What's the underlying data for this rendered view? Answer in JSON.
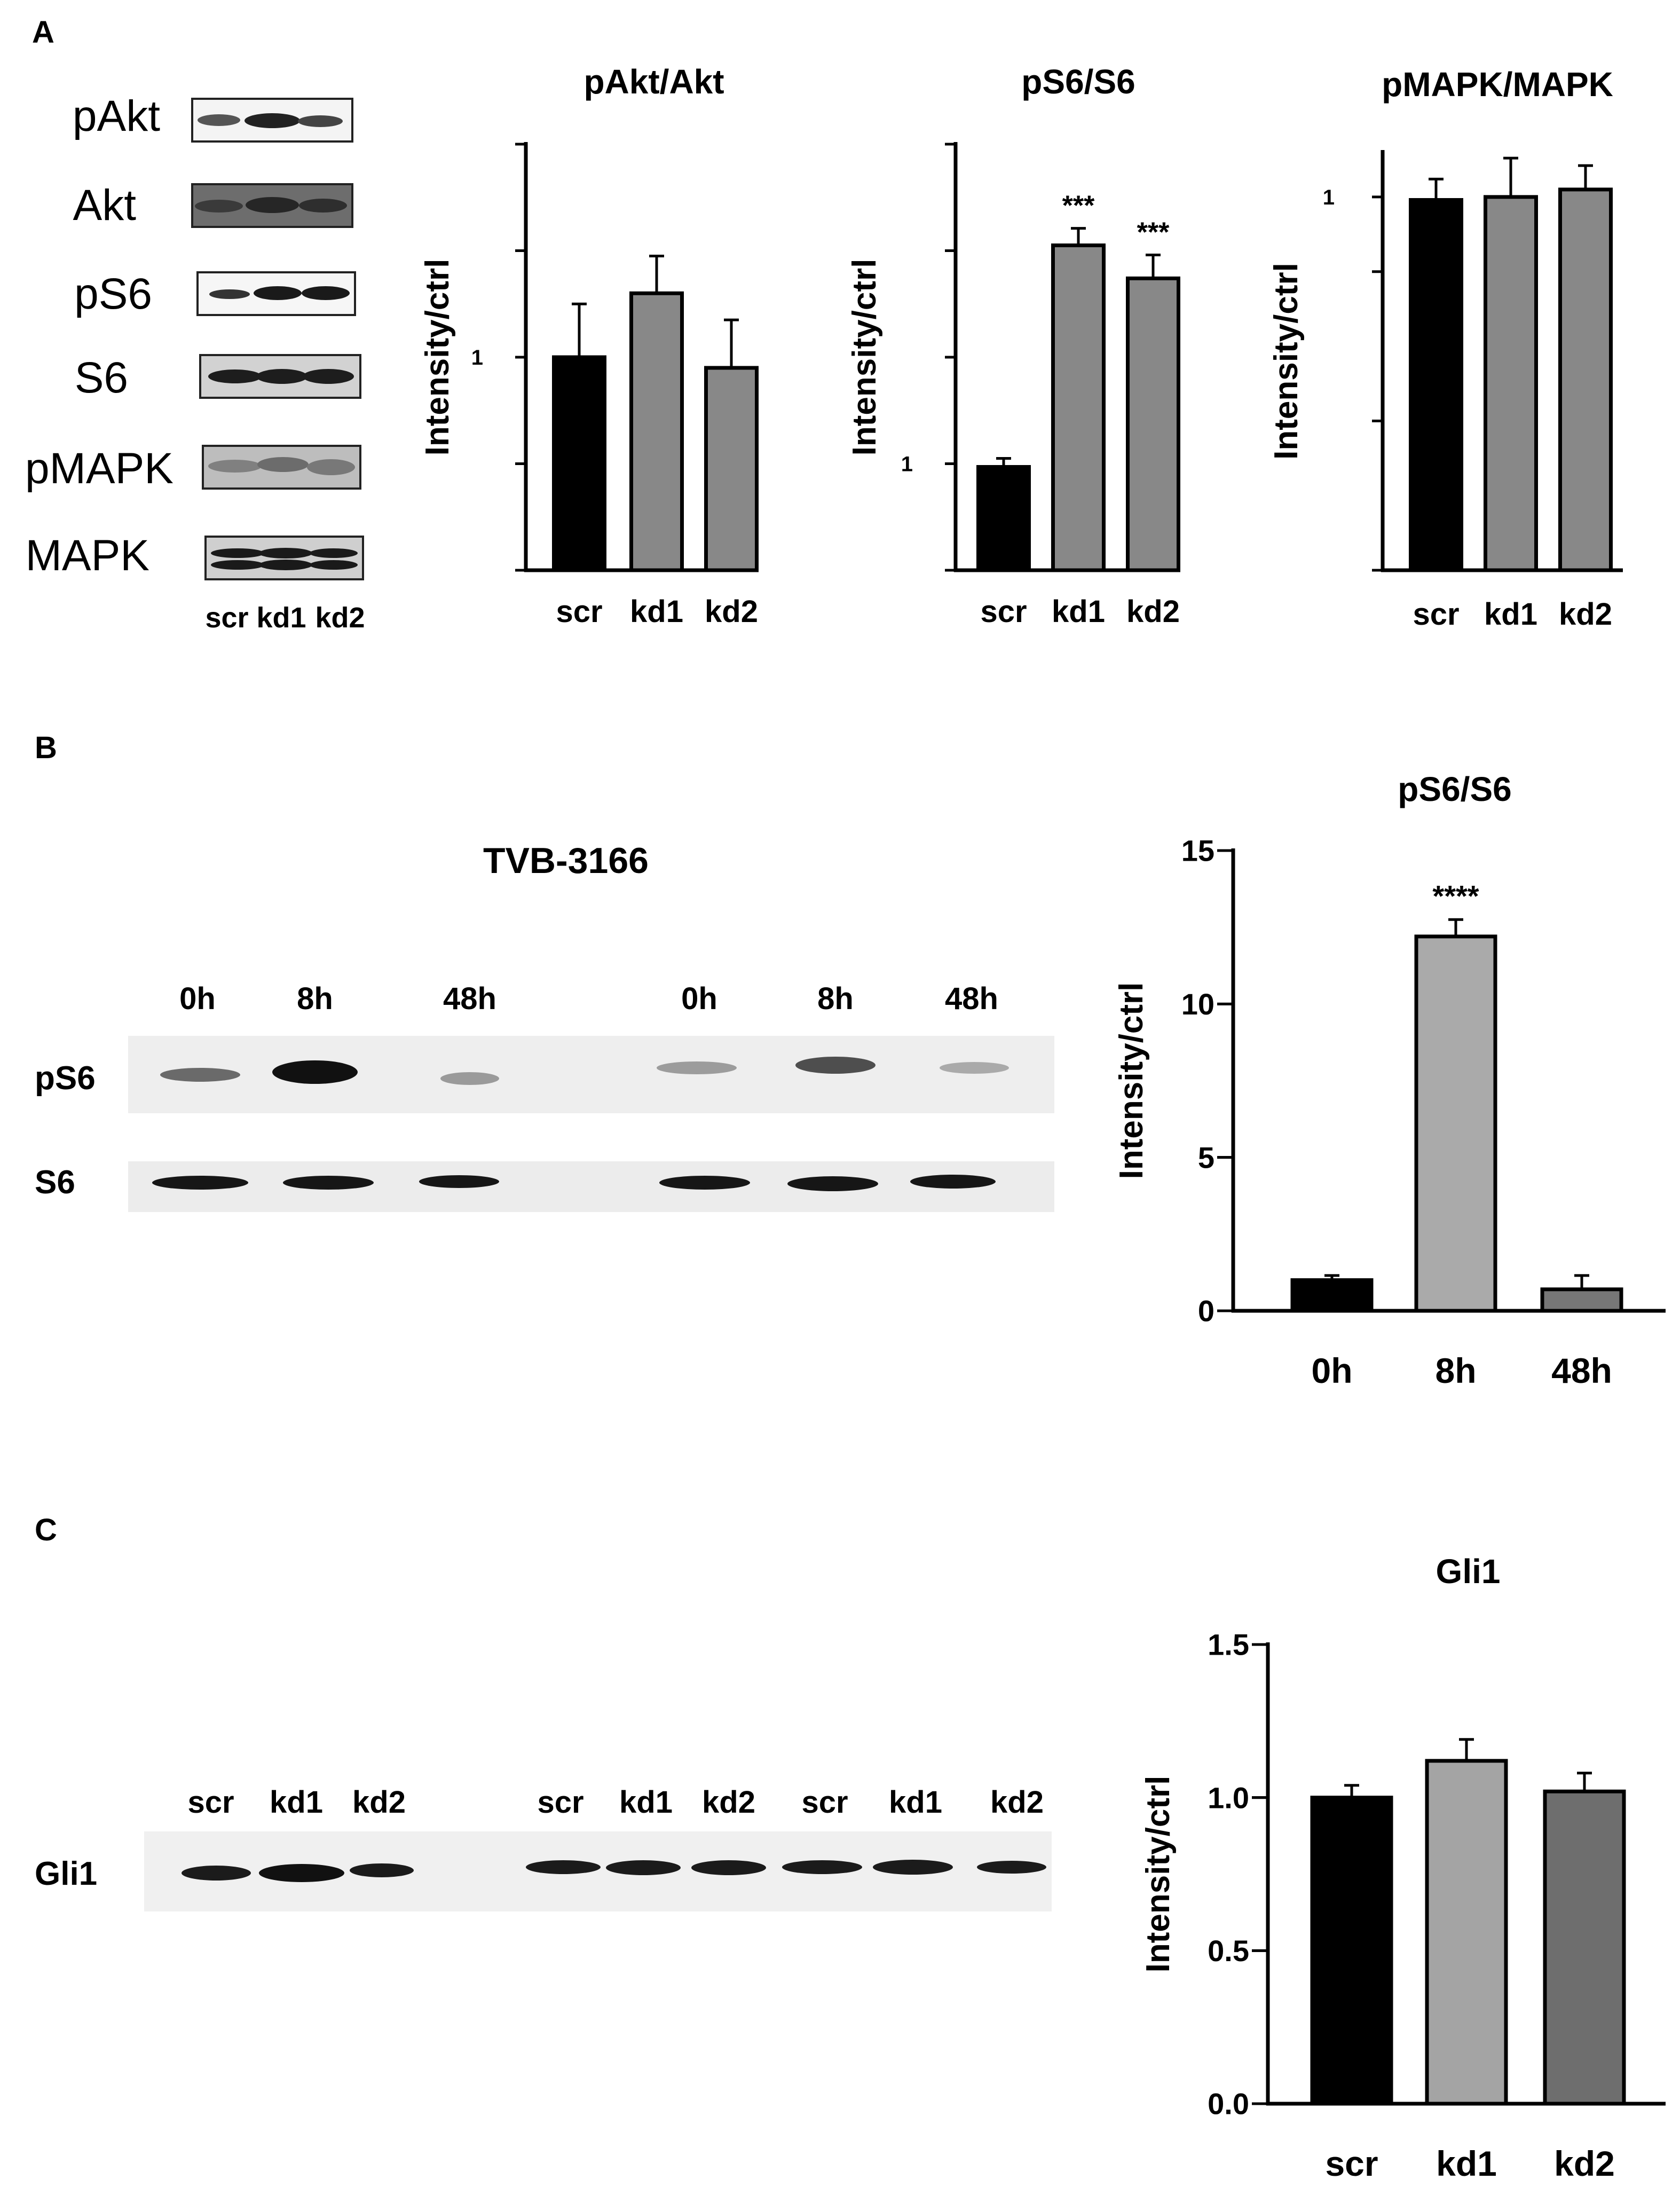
{
  "panels": {
    "a": "A",
    "b": "B",
    "c": "C"
  },
  "blots": {
    "a": {
      "rows": [
        "pAkt",
        "Akt",
        "pS6",
        "S6",
        "pMAPK",
        "MAPK"
      ],
      "lanes": [
        "scr",
        "kd1",
        "kd2"
      ]
    },
    "b": {
      "title": "TVB-3166",
      "lanes": [
        "0h",
        "8h",
        "48h",
        "0h",
        "8h",
        "48h"
      ],
      "rows": [
        "pS6",
        "S6"
      ]
    },
    "c": {
      "lanes": [
        "scr",
        "kd1",
        "kd2",
        "scr",
        "kd1",
        "kd2",
        "scr",
        "kd1",
        "kd2"
      ],
      "rows": [
        "Gli1"
      ]
    }
  },
  "chart_data": [
    {
      "id": "a1",
      "type": "bar",
      "title": "pAkt/Akt",
      "xlabel": "",
      "ylabel": "Intensity/ctrl",
      "categories": [
        "scr",
        "kd1",
        "kd2"
      ],
      "values": [
        1.0,
        1.06,
        0.99
      ],
      "errors": [
        0.05,
        0.035,
        0.045
      ],
      "ylim": [
        0.8,
        1.2
      ],
      "yticks": [
        1
      ],
      "yticks_minor": [
        0.8,
        0.9,
        1.0,
        1.1,
        1.2
      ],
      "colors": [
        "#000000",
        "#888888",
        "#888888"
      ],
      "significance": [
        "",
        "",
        ""
      ]
    },
    {
      "id": "a2",
      "type": "bar",
      "title": "pS6/S6",
      "xlabel": "",
      "ylabel": "Intensity/ctrl",
      "categories": [
        "scr",
        "kd1",
        "kd2"
      ],
      "values": [
        0.97,
        3.05,
        2.74
      ],
      "errors": [
        0.08,
        0.16,
        0.22
      ],
      "ylim": [
        0,
        4
      ],
      "yticks": [
        1
      ],
      "yticks_minor": [
        0,
        1,
        2,
        3,
        4
      ],
      "colors": [
        "#000000",
        "#888888",
        "#888888"
      ],
      "significance": [
        "",
        "***",
        "***"
      ]
    },
    {
      "id": "a3",
      "type": "bar",
      "title": "pMAPK/MAPK",
      "xlabel": "",
      "ylabel": "Intensity/ctrl",
      "categories": [
        "scr",
        "kd1",
        "kd2"
      ],
      "values": [
        0.98,
        1.0,
        1.05
      ],
      "errors": [
        0.14,
        0.26,
        0.16
      ],
      "ylim": [
        -1.5,
        1.3
      ],
      "yticks": [
        1
      ],
      "yticks_minor": [
        -1.5,
        -0.5,
        0.5,
        1.5
      ],
      "colors": [
        "#000000",
        "#888888",
        "#888888"
      ],
      "significance": [
        "",
        "",
        ""
      ]
    },
    {
      "id": "b",
      "type": "bar",
      "title": "pS6/S6",
      "xlabel": "",
      "ylabel": "Intensity/ctrl",
      "categories": [
        "0h",
        "8h",
        "48h"
      ],
      "values": [
        1.0,
        12.2,
        0.7
      ],
      "errors": [
        0.15,
        0.55,
        0.45
      ],
      "ylim": [
        0,
        15
      ],
      "yticks": [
        0,
        5,
        10,
        15
      ],
      "yticks_minor": [
        0,
        5,
        10,
        15
      ],
      "colors": [
        "#000000",
        "#aaaaaa",
        "#777777"
      ],
      "significance": [
        "",
        "****",
        ""
      ]
    },
    {
      "id": "c",
      "type": "bar",
      "title": "Gli1",
      "xlabel": "",
      "ylabel": "Intensity/ctrl",
      "categories": [
        "scr",
        "kd1",
        "kd2"
      ],
      "values": [
        1.0,
        1.12,
        1.02
      ],
      "errors": [
        0.04,
        0.07,
        0.06
      ],
      "ylim": [
        0,
        1.5
      ],
      "yticks": [
        0.0,
        0.5,
        1.0,
        1.5
      ],
      "yticks_minor": [
        0.0,
        0.5,
        1.0,
        1.5
      ],
      "colors": [
        "#000000",
        "#a4a4a4",
        "#6e6e6e"
      ],
      "significance": [
        "",
        "",
        ""
      ]
    }
  ]
}
